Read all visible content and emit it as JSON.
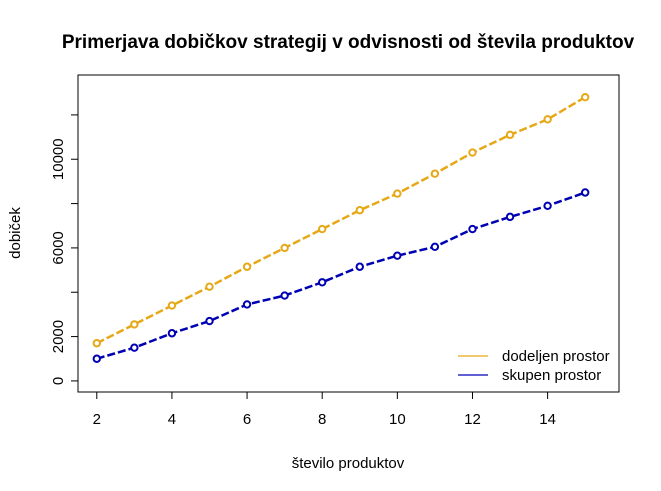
{
  "chart_data": {
    "type": "line",
    "title": "Primerjava dobičkov strategij v odvisnosti od števila produktov",
    "xlabel": "število produktov",
    "ylabel": "dobiček",
    "xlim": [
      1.5,
      15.9
    ],
    "ylim": [
      -500,
      13800
    ],
    "x_ticks": [
      2,
      4,
      6,
      8,
      10,
      12,
      14
    ],
    "y_ticks": [
      0,
      2000,
      6000,
      10000
    ],
    "y_minor_ticks": [
      4000,
      8000,
      12000
    ],
    "grid": false,
    "legend_position": "bottom-right",
    "x": [
      2,
      3,
      4,
      5,
      6,
      7,
      8,
      9,
      10,
      11,
      12,
      13,
      14,
      15
    ],
    "series": [
      {
        "name": "dodeljen prostor",
        "color": "#E6A817",
        "values": [
          1700,
          2550,
          3400,
          4250,
          5150,
          6000,
          6850,
          7700,
          8450,
          9350,
          10300,
          11100,
          11800,
          12800
        ]
      },
      {
        "name": "skupen prostor",
        "color": "#0000B3",
        "values": [
          1000,
          1500,
          2150,
          2700,
          3450,
          3850,
          4450,
          5150,
          5650,
          6050,
          6850,
          7400,
          7900,
          8500
        ]
      }
    ]
  }
}
